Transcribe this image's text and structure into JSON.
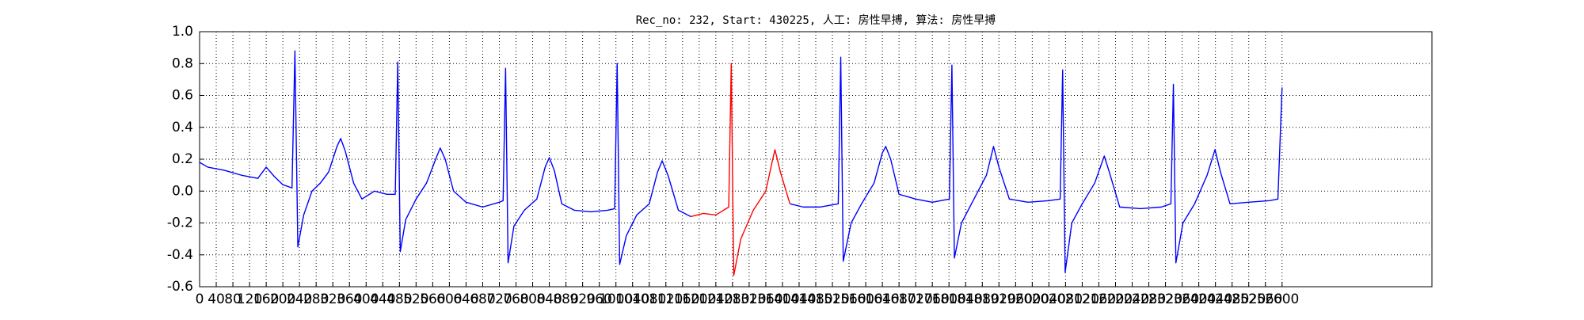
{
  "chart_data": {
    "type": "line",
    "title": "Rec_no: 232, Start: 430225, 人工: 房性早搏, 算法: 房性早搏",
    "x": [
      0,
      20,
      60,
      100,
      140,
      160,
      180,
      200,
      222,
      229,
      236,
      250,
      270,
      290,
      310,
      330,
      339,
      350,
      370,
      390,
      420,
      450,
      470,
      476,
      482,
      495,
      520,
      545,
      570,
      578,
      590,
      610,
      640,
      680,
      720,
      729,
      735,
      741,
      755,
      780,
      810,
      830,
      840,
      852,
      870,
      900,
      940,
      980,
      997,
      1003,
      1009,
      1025,
      1050,
      1080,
      1100,
      1111,
      1125,
      1150,
      1180,
      1210,
      1240,
      1271,
      1277,
      1283,
      1300,
      1330,
      1360,
      1375,
      1382,
      1395,
      1418,
      1450,
      1490,
      1534,
      1540,
      1546,
      1565,
      1590,
      1620,
      1640,
      1648,
      1660,
      1680,
      1720,
      1760,
      1801,
      1807,
      1813,
      1830,
      1860,
      1890,
      1907,
      1920,
      1945,
      1990,
      2040,
      2067,
      2073,
      2079,
      2095,
      2120,
      2150,
      2173,
      2185,
      2210,
      2260,
      2310,
      2333,
      2339,
      2345,
      2362,
      2390,
      2420,
      2439,
      2452,
      2475,
      2520,
      2570,
      2590,
      2600
    ],
    "series": [
      {
        "color": "#0000ff",
        "values": [
          0.18,
          0.15,
          0.13,
          0.1,
          0.08,
          0.15,
          0.09,
          0.04,
          0.02,
          0.88,
          -0.35,
          -0.15,
          0.0,
          0.05,
          0.12,
          0.28,
          0.33,
          0.25,
          0.05,
          -0.05,
          0.0,
          -0.02,
          -0.02,
          0.81,
          -0.38,
          -0.18,
          -0.05,
          0.05,
          0.22,
          0.27,
          0.2,
          0.0,
          -0.07,
          -0.1,
          -0.07,
          -0.06,
          0.77,
          -0.45,
          -0.22,
          -0.12,
          -0.05,
          0.15,
          0.21,
          0.13,
          -0.08,
          -0.12,
          -0.13,
          -0.12,
          -0.11,
          0.8,
          -0.46,
          -0.28,
          -0.15,
          -0.08,
          0.12,
          0.19,
          0.1,
          -0.12,
          -0.16,
          null,
          null,
          null,
          null,
          null,
          null,
          null,
          null,
          null,
          null,
          null,
          -0.08,
          -0.1,
          -0.1,
          -0.08,
          0.84,
          -0.44,
          -0.2,
          -0.08,
          0.05,
          0.24,
          0.28,
          0.2,
          -0.02,
          -0.05,
          -0.07,
          -0.05,
          0.79,
          -0.42,
          -0.2,
          -0.05,
          0.1,
          0.28,
          0.15,
          -0.05,
          -0.07,
          -0.06,
          -0.05,
          0.76,
          -0.51,
          -0.2,
          -0.08,
          0.05,
          0.22,
          0.12,
          -0.1,
          -0.11,
          -0.1,
          -0.08,
          0.67,
          -0.45,
          -0.2,
          -0.08,
          0.1,
          0.26,
          0.12,
          -0.08,
          -0.07,
          -0.06,
          -0.05,
          0.65
        ]
      },
      {
        "color": "#ff0000",
        "values": [
          null,
          null,
          null,
          null,
          null,
          null,
          null,
          null,
          null,
          null,
          null,
          null,
          null,
          null,
          null,
          null,
          null,
          null,
          null,
          null,
          null,
          null,
          null,
          null,
          null,
          null,
          null,
          null,
          null,
          null,
          null,
          null,
          null,
          null,
          null,
          null,
          null,
          null,
          null,
          null,
          null,
          null,
          null,
          null,
          null,
          null,
          null,
          null,
          null,
          null,
          null,
          null,
          null,
          null,
          null,
          null,
          null,
          null,
          -0.16,
          -0.14,
          -0.15,
          -0.1,
          0.8,
          -0.53,
          -0.3,
          -0.12,
          0.0,
          0.18,
          0.26,
          0.12,
          -0.08,
          null,
          null,
          null,
          null,
          null,
          null,
          null,
          null,
          null,
          null,
          null,
          null,
          null,
          null,
          null,
          null,
          null,
          null,
          null,
          null,
          null,
          null,
          null,
          null,
          null,
          null,
          null,
          null,
          null,
          null,
          null,
          null,
          null,
          null,
          null,
          null,
          null,
          null,
          null,
          null,
          null,
          null,
          null,
          null,
          null,
          null,
          null,
          null,
          null
        ]
      }
    ],
    "xlim": [
      0,
      2960
    ],
    "xticks": [
      0,
      40,
      80,
      120,
      160,
      200,
      240,
      280,
      320,
      360,
      400,
      440,
      480,
      520,
      560,
      600,
      640,
      680,
      720,
      760,
      800,
      840,
      880,
      920,
      960,
      1000,
      1040,
      1080,
      1120,
      1160,
      1200,
      1240,
      1280,
      1320,
      1360,
      1400,
      1440,
      1480,
      1520,
      1560,
      1600,
      1640,
      1680,
      1720,
      1760,
      1800,
      1840,
      1880,
      1920,
      1960,
      2000,
      2040,
      2080,
      2120,
      2160,
      2200,
      2240,
      2280,
      2320,
      2360,
      2400,
      2440,
      2480,
      2520,
      2560,
      2600
    ],
    "ylim": [
      -0.6,
      1.0
    ],
    "yticks": [
      -0.6,
      -0.4,
      -0.2,
      {
        "value": 0,
        "label": "0.0"
      },
      0.2,
      0.4,
      0.6,
      0.8,
      {
        "value": 1,
        "label": "1.0"
      }
    ],
    "grid": true
  }
}
